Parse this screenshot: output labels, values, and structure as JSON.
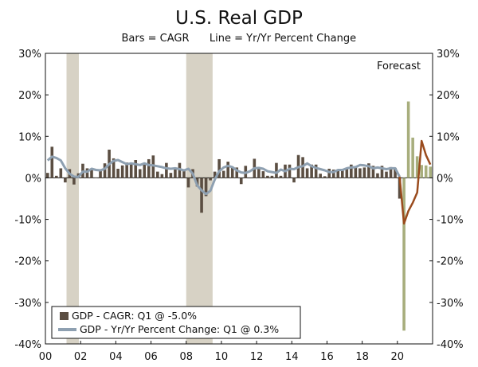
{
  "chart_data": {
    "type": "bar",
    "title": "U.S. Real GDP",
    "subtitle_left": "Bars = CAGR",
    "subtitle_right": "Line = Yr/Yr Percent Change",
    "annotation": "Forecast",
    "ylim": [
      -40,
      30
    ],
    "yticks": [
      "30%",
      "20%",
      "10%",
      "0%",
      "-10%",
      "-20%",
      "-30%",
      "-40%"
    ],
    "ytick_values": [
      30,
      20,
      10,
      0,
      -10,
      -20,
      -30,
      -40
    ],
    "xticks": [
      "00",
      "02",
      "04",
      "06",
      "08",
      "10",
      "12",
      "14",
      "16",
      "18",
      "20"
    ],
    "xtick_years": [
      2000,
      2002,
      2004,
      2006,
      2008,
      2010,
      2012,
      2014,
      2016,
      2018,
      2020
    ],
    "xlim": [
      2000,
      2022
    ],
    "recessions": [
      [
        2001.2,
        2001.9
      ],
      [
        2008.0,
        2009.5
      ]
    ],
    "colors": {
      "bars": "#5b4e42",
      "forecast_bars": "#a8ae7d",
      "line": "#8ea0b1",
      "forecast_line": "#9a4b1d",
      "recession": "#d7d2c5"
    },
    "legend": [
      {
        "label": "GDP - CAGR: Q1 @ -5.0%",
        "kind": "bar"
      },
      {
        "label": "GDP - Yr/Yr Percent Change: Q1 @ 0.3%",
        "kind": "line"
      }
    ],
    "series": [
      {
        "name": "GDP - CAGR",
        "start": 2000.0,
        "values": [
          1.2,
          7.5,
          0.5,
          2.3,
          -1.1,
          2.1,
          -1.6,
          1.1,
          3.4,
          2.3,
          1.9,
          0.1,
          2.1,
          3.5,
          6.8,
          4.7,
          2.2,
          3.0,
          3.7,
          3.5,
          4.3,
          2.1,
          3.4,
          4.5,
          5.4,
          1.5,
          0.9,
          3.6,
          1.2,
          2.3,
          3.6,
          1.9,
          -2.3,
          2.1,
          -2.1,
          -8.4,
          -4.4,
          -0.6,
          1.5,
          4.5,
          1.7,
          3.9,
          2.7,
          2.5,
          -1.5,
          2.9,
          -0.1,
          4.6,
          2.3,
          1.6,
          0.5,
          0.5,
          3.6,
          0.5,
          3.2,
          3.2,
          -1.1,
          5.5,
          5.0,
          2.3,
          3.2,
          3.2,
          1.0,
          0.4,
          2.2,
          2.0,
          1.9,
          1.8,
          2.3,
          3.2,
          2.8,
          2.3,
          2.5,
          3.5,
          2.9,
          1.1,
          2.9,
          1.5,
          2.6,
          2.4,
          -5.0
        ],
        "forecast": [
          -36.8,
          18.4,
          9.7,
          5.2,
          3.1,
          3.0,
          2.7
        ]
      },
      {
        "name": "GDP - Yr/Yr Percent Change",
        "start": 2000.0,
        "values": [
          4.2,
          5.1,
          4.8,
          4.2,
          2.3,
          1.0,
          0.3,
          0.2,
          1.5,
          1.5,
          2.2,
          1.9,
          1.8,
          2.2,
          3.3,
          4.1,
          4.3,
          3.8,
          3.3,
          3.5,
          3.3,
          3.1,
          3.5,
          3.1,
          3.0,
          2.8,
          2.6,
          2.3,
          2.2,
          2.3,
          2.1,
          1.8,
          2.2,
          1.0,
          -1.8,
          -3.0,
          -3.9,
          -3.1,
          -0.4,
          1.6,
          2.5,
          2.9,
          2.6,
          1.8,
          1.3,
          1.2,
          1.6,
          2.3,
          2.4,
          2.2,
          1.6,
          1.4,
          1.2,
          2.0,
          1.6,
          2.2,
          2.1,
          2.6,
          2.8,
          3.5,
          2.8,
          2.4,
          2.1,
          1.8,
          1.4,
          1.4,
          1.9,
          1.9,
          2.3,
          2.5,
          2.6,
          3.1,
          3.0,
          2.8,
          2.3,
          2.5,
          2.3,
          2.1,
          2.3,
          2.3,
          0.3
        ],
        "forecast": [
          -11.0,
          -8.0,
          -6.0,
          -3.5,
          8.9,
          5.5,
          3.2
        ]
      }
    ]
  }
}
